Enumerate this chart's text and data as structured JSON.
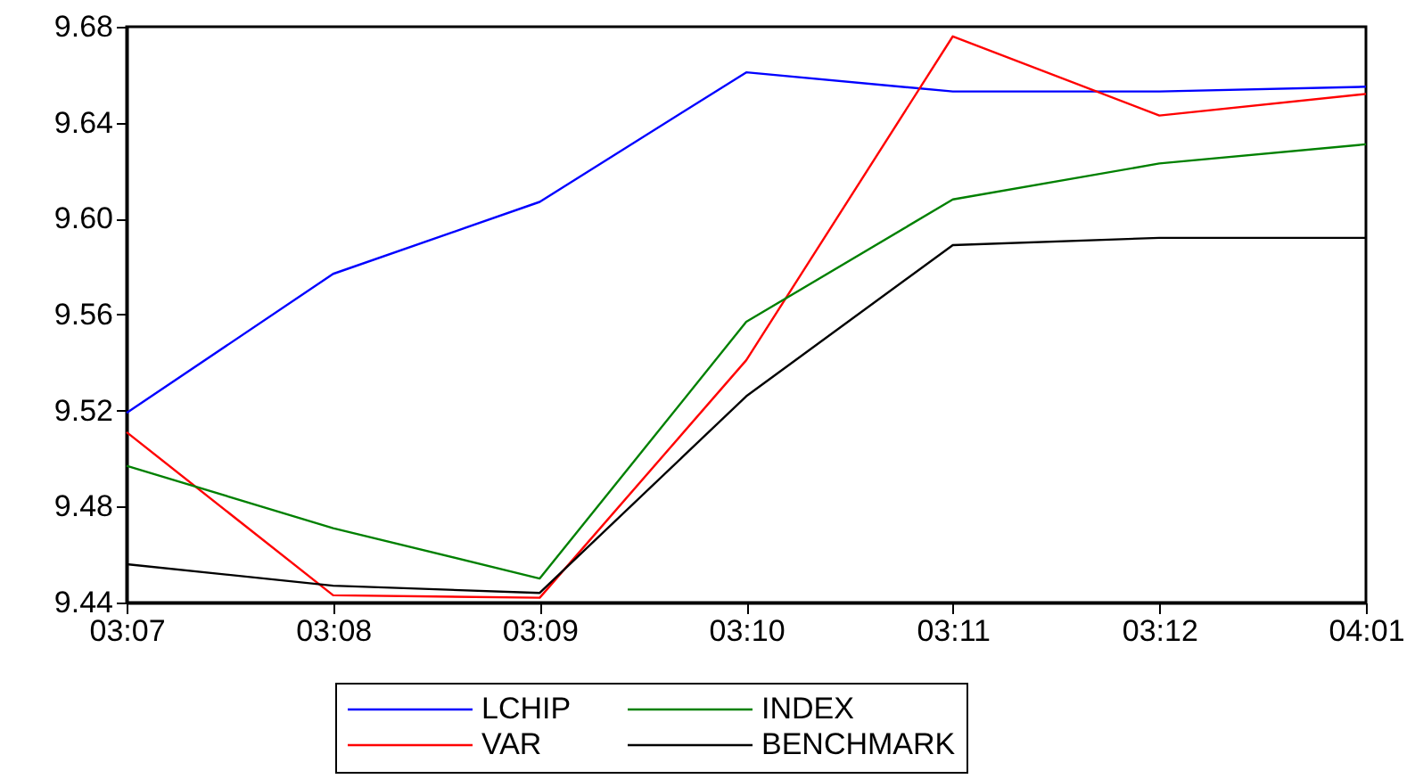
{
  "chart_data": {
    "type": "line",
    "categories": [
      "03:07",
      "03:08",
      "03:09",
      "03:10",
      "03:11",
      "03:12",
      "04:01"
    ],
    "series": [
      {
        "name": "LCHIP",
        "color": "#0000ff",
        "values": [
          9.519,
          9.577,
          9.607,
          9.661,
          9.653,
          9.653,
          9.655
        ]
      },
      {
        "name": "VAR",
        "color": "#ff0000",
        "values": [
          9.511,
          9.443,
          9.442,
          9.541,
          9.676,
          9.643,
          9.652
        ]
      },
      {
        "name": "INDEX",
        "color": "#008000",
        "values": [
          9.497,
          9.471,
          9.45,
          9.557,
          9.608,
          9.623,
          9.631
        ]
      },
      {
        "name": "BENCHMARK",
        "color": "#000000",
        "values": [
          9.456,
          9.447,
          9.444,
          9.526,
          9.589,
          9.592,
          9.592
        ]
      }
    ],
    "ylim": [
      9.44,
      9.68
    ],
    "yticks": [
      9.44,
      9.48,
      9.52,
      9.56,
      {
        "value": 9.6,
        "label": "9.60"
      },
      9.64,
      9.68
    ],
    "grid": false,
    "legend": "bottom",
    "marker": "none",
    "line_style": "solid"
  }
}
